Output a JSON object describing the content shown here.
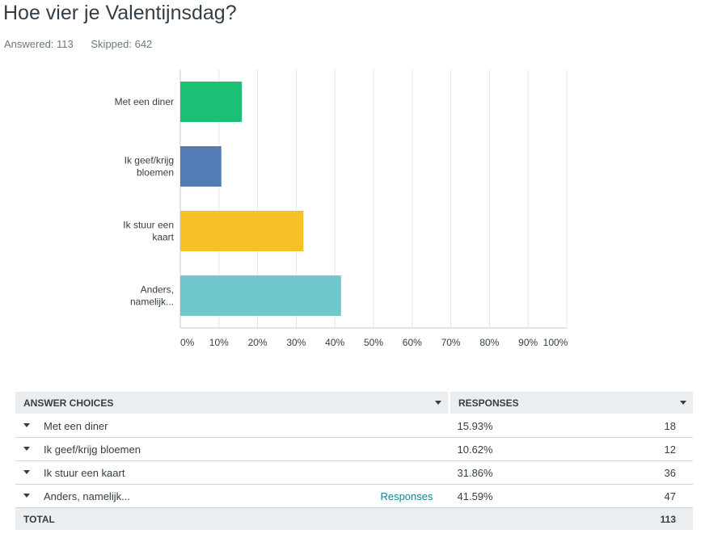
{
  "question": {
    "title": "Hoe vier je Valentijnsdag?",
    "answered": "Answered: 113",
    "skipped": "Skipped: 642"
  },
  "chart_data": {
    "type": "bar",
    "orientation": "horizontal",
    "categories": [
      [
        "Met een diner"
      ],
      [
        "Ik geef/krijg",
        "bloemen"
      ],
      [
        "Ik stuur een",
        "kaart"
      ],
      [
        "Anders,",
        "namelijk..."
      ]
    ],
    "values": [
      15.93,
      10.62,
      31.86,
      41.59
    ],
    "colors": [
      "#1cbf74",
      "#537bb6",
      "#f7bf28",
      "#70c8cd"
    ],
    "xlim": [
      0,
      100
    ],
    "ticks": [
      "0%",
      "10%",
      "20%",
      "30%",
      "40%",
      "50%",
      "60%",
      "70%",
      "80%",
      "90%",
      "100%"
    ],
    "grid": true
  },
  "table": {
    "headers": {
      "choices": "ANSWER CHOICES",
      "responses": "RESPONSES"
    },
    "rows": [
      {
        "choice": "Met een diner",
        "percent": "15.93%",
        "count": "18",
        "link": ""
      },
      {
        "choice": "Ik geef/krijg bloemen",
        "percent": "10.62%",
        "count": "12",
        "link": ""
      },
      {
        "choice": "Ik stuur een kaart",
        "percent": "31.86%",
        "count": "36",
        "link": ""
      },
      {
        "choice": "Anders, namelijk...",
        "percent": "41.59%",
        "count": "47",
        "link": "Responses"
      }
    ],
    "total": {
      "label": "TOTAL",
      "count": "113"
    }
  }
}
